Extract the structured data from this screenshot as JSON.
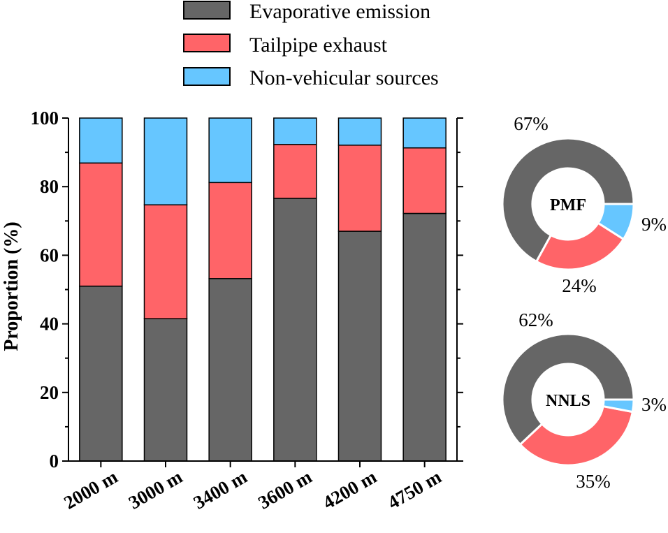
{
  "chart_data": [
    {
      "type": "bar",
      "stacked": true,
      "ylabel": "Proportion (%)",
      "ylim": [
        0,
        100
      ],
      "yticks": [
        0,
        20,
        40,
        60,
        80,
        100
      ],
      "categories": [
        "2000 m",
        "3000 m",
        "3400 m",
        "3600 m",
        "4200 m",
        "4750 m"
      ],
      "series": [
        {
          "name": "Evaporative emission",
          "color": "#666666",
          "values": [
            51,
            41.5,
            53.2,
            76.6,
            67,
            72.2
          ]
        },
        {
          "name": "Tailpipe exhaust",
          "color": "#FF6468",
          "values": [
            35.9,
            33.2,
            28,
            15.7,
            25.1,
            19.1
          ]
        },
        {
          "name": "Non-vehicular sources",
          "color": "#66C6FF",
          "values": [
            13.1,
            25.3,
            18.8,
            7.7,
            7.9,
            8.7
          ]
        }
      ],
      "legend": "top"
    },
    {
      "type": "pie",
      "style": "donut",
      "center_label": "PMF",
      "labels": [
        "Evaporative emission",
        "Tailpipe exhaust",
        "Non-vehicular sources"
      ],
      "values": [
        67,
        24,
        9
      ],
      "value_labels": [
        "67%",
        "24%",
        "9%"
      ],
      "colors": [
        "#666666",
        "#FF6468",
        "#66C6FF"
      ]
    },
    {
      "type": "pie",
      "style": "donut",
      "center_label": "NNLS",
      "labels": [
        "Evaporative emission",
        "Tailpipe exhaust",
        "Non-vehicular sources"
      ],
      "values": [
        62,
        35,
        3
      ],
      "value_labels": [
        "62%",
        "35%",
        "3%"
      ],
      "colors": [
        "#666666",
        "#FF6468",
        "#66C6FF"
      ]
    }
  ]
}
